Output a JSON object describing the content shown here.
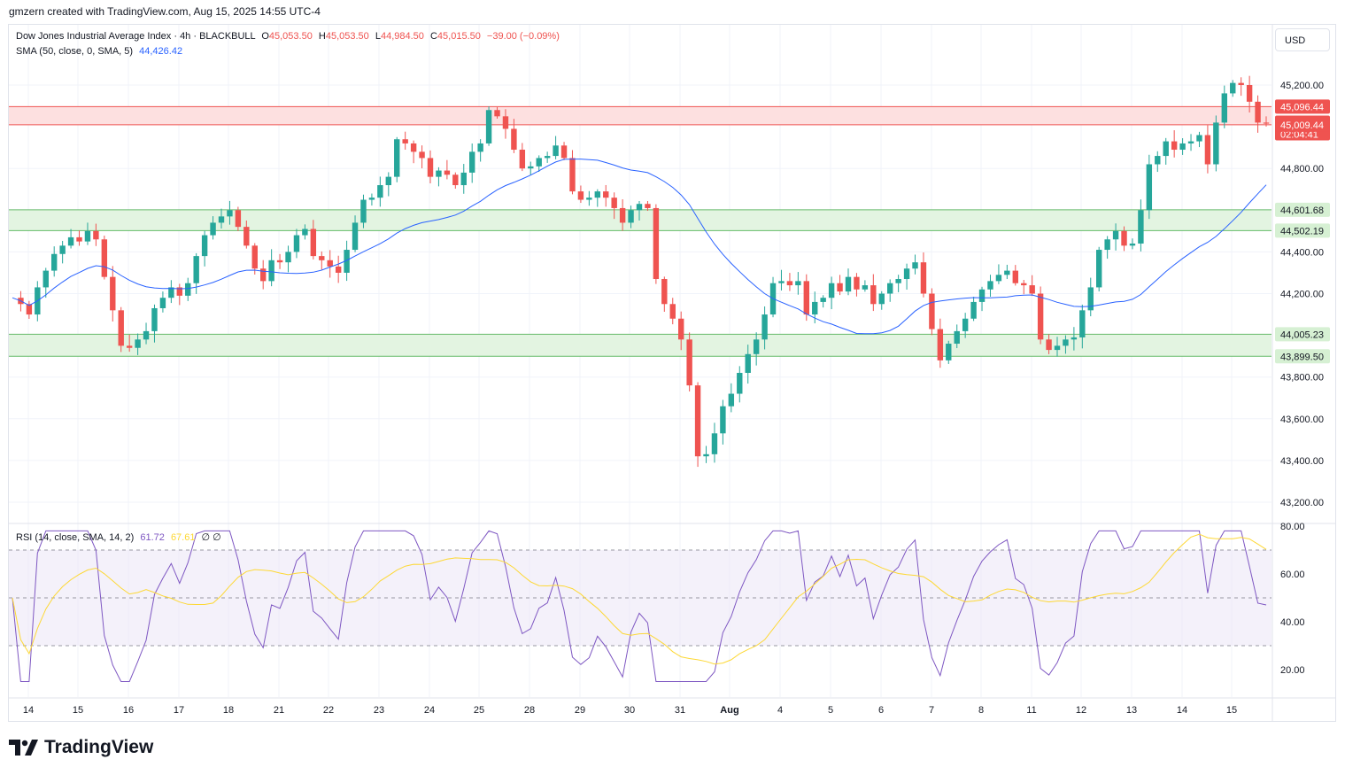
{
  "credit": "gmzern created with TradingView.com, Aug 15, 2025 14:55 UTC-4",
  "currency": "USD",
  "brand": "TradingView",
  "legend": {
    "symbol": "Dow Jones Industrial Average Index · 4h · BLACKBULL",
    "o_label": "O",
    "o_val": "45,053.50",
    "h_label": "H",
    "h_val": "45,053.50",
    "l_label": "L",
    "l_val": "44,984.50",
    "c_label": "C",
    "c_val": "45,015.50",
    "change": "−39.00 (−0.09%)",
    "sma_label": "SMA (50, close, 0, SMA, 5)",
    "sma_val": "44,426.42",
    "rsi_label": "RSI (14, close, SMA, 14, 2)",
    "rsi_val": "61.72",
    "rsi_ma_val": "67.61",
    "rsi_extra": "∅ ∅"
  },
  "colors": {
    "up": "#26a69a",
    "down": "#ef5350",
    "sma": "#2962ff",
    "rsi": "#7e57c2",
    "rsi_ma": "#fdd835",
    "resistance_fill": "#fde0e0",
    "resistance_line": "#ef5350",
    "support_fill": "#e3f4e1",
    "support_line": "#66bb6a",
    "price_label": "#ef5350",
    "support_label": "#d6f0d3"
  },
  "chart_data": {
    "type": "candlestick",
    "price_axis": {
      "ticks": [
        "45,200.00",
        "44,800.00",
        "44,400.00",
        "44,200.00",
        "43,800.00",
        "43,600.00",
        "43,400.00",
        "43,200.00"
      ],
      "tick_values": [
        45200,
        44800,
        44400,
        44200,
        43800,
        43600,
        43400,
        43200
      ]
    },
    "rsi_axis": {
      "ticks": [
        "80.00",
        "60.00",
        "40.00",
        "20.00"
      ],
      "tick_values": [
        80,
        60,
        40,
        20
      ],
      "bands": [
        70,
        50,
        30
      ]
    },
    "x_labels": [
      "14",
      "15",
      "16",
      "17",
      "18",
      "21",
      "22",
      "23",
      "24",
      "25",
      "28",
      "29",
      "30",
      "31",
      "Aug",
      "4",
      "5",
      "6",
      "7",
      "8",
      "11",
      "12",
      "13",
      "14",
      "15"
    ],
    "zones": [
      {
        "type": "resistance",
        "top": 45096.44,
        "bottom": 45009.44
      },
      {
        "type": "support",
        "top": 44601.68,
        "bottom": 44502.19
      },
      {
        "type": "support",
        "top": 44005.23,
        "bottom": 43899.5
      }
    ],
    "price_labels": [
      {
        "text": "45,096.44",
        "value": 45096.44,
        "kind": "resistance"
      },
      {
        "text": "45,015.50",
        "sub": "02:04:41",
        "value": 45015.5,
        "kind": "current"
      },
      {
        "text": "45,009.44",
        "value": 45009.44,
        "kind": "resistance"
      },
      {
        "text": "44,601.68",
        "value": 44601.68,
        "kind": "support"
      },
      {
        "text": "44,502.19",
        "value": 44502.19,
        "kind": "support"
      },
      {
        "text": "44,005.23",
        "value": 44005.23,
        "kind": "support"
      },
      {
        "text": "43,899.50",
        "value": 43899.5,
        "kind": "support"
      }
    ],
    "close_path": [
      44180,
      44150,
      44100,
      44230,
      44310,
      44390,
      44430,
      44470,
      44450,
      44500,
      44460,
      44280,
      44120,
      43950,
      43940,
      43980,
      44020,
      44130,
      44180,
      44230,
      44190,
      44250,
      44380,
      44480,
      44540,
      44570,
      44600,
      44520,
      44430,
      44320,
      44260,
      44360,
      44350,
      44400,
      44480,
      44510,
      44380,
      44360,
      44330,
      44300,
      44410,
      44540,
      44650,
      44660,
      44720,
      44760,
      44940,
      44920,
      44880,
      44850,
      44760,
      44790,
      44770,
      44720,
      44780,
      44880,
      44920,
      45080,
      45050,
      44990,
      44890,
      44800,
      44810,
      44850,
      44860,
      44910,
      44850,
      44690,
      44650,
      44660,
      44690,
      44660,
      44610,
      44540,
      44600,
      44630,
      44610,
      44270,
      44150,
      44080,
      43980,
      43760,
      43420,
      43430,
      43530,
      43660,
      43720,
      43820,
      43910,
      43980,
      44100,
      44250,
      44260,
      44240,
      44260,
      44100,
      44160,
      44180,
      44250,
      44210,
      44280,
      44220,
      44240,
      44150,
      44200,
      44250,
      44270,
      44320,
      44350,
      44200,
      44030,
      43880,
      43960,
      44020,
      44080,
      44160,
      44220,
      44260,
      44290,
      44310,
      44250,
      44240,
      44200,
      43980,
      43930,
      43950,
      43980,
      43990,
      44120,
      44230,
      44410,
      44460,
      44500,
      44430,
      44440,
      44600,
      44820,
      44860,
      44930,
      44890,
      44920,
      44930,
      44960,
      44820,
      45020,
      45160,
      45210,
      45200,
      45120,
      45020,
      45015
    ]
  }
}
